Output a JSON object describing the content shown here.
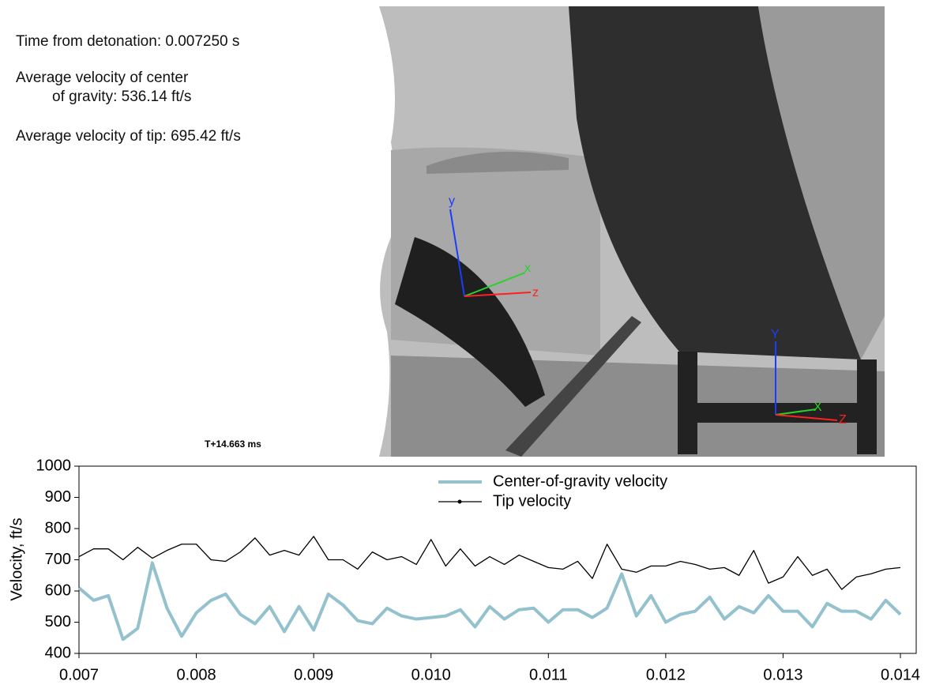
{
  "info": {
    "time": "Time from detonation: 0.007250 s",
    "cog_line1": "Average velocity of center",
    "cog_line2": "of gravity: 536.14 ft/s",
    "tip": "Average velocity of tip: 695.42 ft/s"
  },
  "photo": {
    "caption": "T+14.663 ms",
    "labels": [
      "y",
      "x",
      "z",
      "Y",
      "X",
      "Z"
    ]
  },
  "chart_data": {
    "type": "line",
    "y_label": "Velocity, ft/s",
    "x": [
      0.007,
      0.007125,
      0.00725,
      0.007375,
      0.0075,
      0.007625,
      0.00775,
      0.007875,
      0.008,
      0.008125,
      0.00825,
      0.008375,
      0.0085,
      0.008625,
      0.00875,
      0.008875,
      0.009,
      0.009125,
      0.00925,
      0.009375,
      0.0095,
      0.009625,
      0.00975,
      0.009875,
      0.01,
      0.010125,
      0.01025,
      0.010375,
      0.0105,
      0.010625,
      0.01075,
      0.010875,
      0.011,
      0.011125,
      0.01125,
      0.011375,
      0.0115,
      0.011625,
      0.01175,
      0.011875,
      0.012,
      0.012125,
      0.01225,
      0.012375,
      0.0125,
      0.012625,
      0.01275,
      0.012875,
      0.013,
      0.013125,
      0.01325,
      0.013375,
      0.0135,
      0.013625,
      0.01375,
      0.013875,
      0.014
    ],
    "series": [
      {
        "name": "Center-of-gravity velocity",
        "color": "#93c1cd",
        "values": [
          610,
          570,
          585,
          445,
          480,
          690,
          545,
          455,
          530,
          570,
          590,
          525,
          495,
          550,
          470,
          550,
          475,
          590,
          555,
          505,
          495,
          545,
          520,
          510,
          515,
          520,
          540,
          485,
          550,
          510,
          540,
          545,
          500,
          540,
          540,
          515,
          545,
          655,
          520,
          585,
          500,
          525,
          535,
          580,
          510,
          550,
          530,
          585,
          535,
          535,
          485,
          560,
          535,
          535,
          510,
          570,
          525
        ]
      },
      {
        "name": "Tip velocity",
        "color": "#000000",
        "values": [
          710,
          735,
          735,
          700,
          740,
          705,
          730,
          750,
          750,
          700,
          695,
          725,
          770,
          715,
          730,
          715,
          775,
          700,
          700,
          670,
          725,
          700,
          710,
          685,
          765,
          680,
          735,
          680,
          710,
          685,
          715,
          695,
          675,
          670,
          695,
          640,
          750,
          670,
          660,
          680,
          680,
          695,
          685,
          670,
          675,
          650,
          730,
          625,
          645,
          710,
          650,
          670,
          605,
          645,
          655,
          670,
          675
        ]
      }
    ],
    "xlim": [
      0.007,
      0.014
    ],
    "xticks": [
      0.007,
      0.008,
      0.009,
      {
        "value": 0.01,
        "label": "0.010"
      },
      0.011,
      0.012,
      0.013,
      0.014
    ],
    "ylim": [
      400,
      1000
    ],
    "yticks": [
      400,
      500,
      600,
      700,
      800,
      900,
      1000
    ]
  }
}
